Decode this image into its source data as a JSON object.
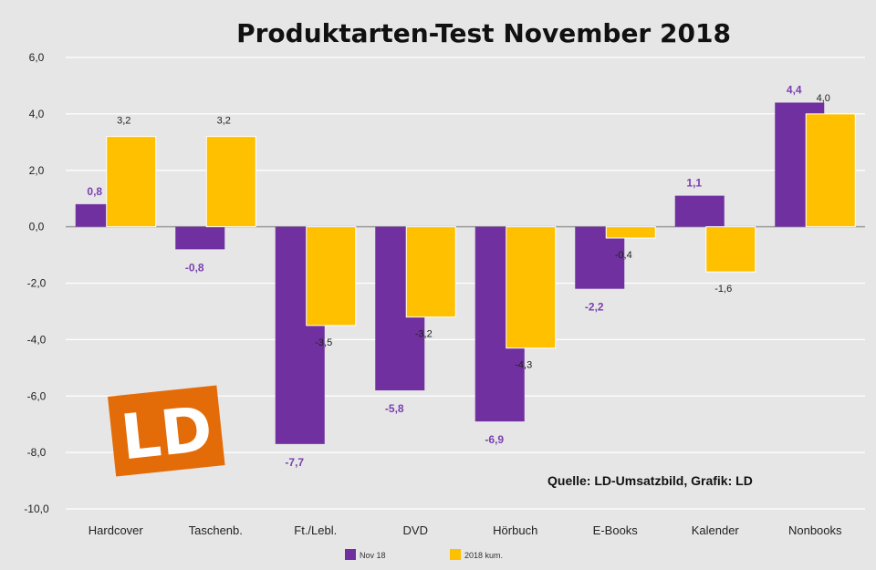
{
  "chart_data": {
    "type": "bar",
    "title": "Produktarten-Test November 2018",
    "categories": [
      "Hardcover",
      "Taschenb.",
      "Ft./Lebl.",
      "DVD",
      "Hörbuch",
      "E-Books",
      "Kalender",
      "Nonbooks"
    ],
    "series": [
      {
        "name": "Nov 18",
        "color": "#7030a0",
        "values": [
          0.8,
          -0.8,
          -7.7,
          -5.8,
          -6.9,
          -2.2,
          1.1,
          4.4
        ]
      },
      {
        "name": "2018 kum.",
        "color": "#ffc000",
        "values": [
          3.2,
          3.2,
          -3.5,
          -3.2,
          -4.3,
          -0.4,
          -1.6,
          4.0
        ]
      }
    ],
    "value_labels": [
      [
        "0,8",
        "-0,8",
        "-7,7",
        "-5,8",
        "-6,9",
        "-2,2",
        "1,1",
        "4,4"
      ],
      [
        "3,2",
        "3,2",
        "-3,5",
        "-3,2",
        "-4,3",
        "-0,4",
        "-1,6",
        "4,0"
      ]
    ],
    "yticks": [
      "6,0",
      "4,0",
      "2,0",
      "0,0",
      "-2,0",
      "-4,0",
      "-6,0",
      "-8,0",
      "-10,0"
    ],
    "ytick_values": [
      6,
      4,
      2,
      0,
      -2,
      -4,
      -6,
      -8,
      -10
    ],
    "ylim": [
      -10,
      6
    ],
    "xlabel": "",
    "ylabel": "",
    "grid": true,
    "legend_position": "bottom",
    "source": "Quelle: LD-Umsatzbild, Grafik: LD"
  },
  "logo": {
    "text": "LD",
    "color": "#e36c09"
  }
}
